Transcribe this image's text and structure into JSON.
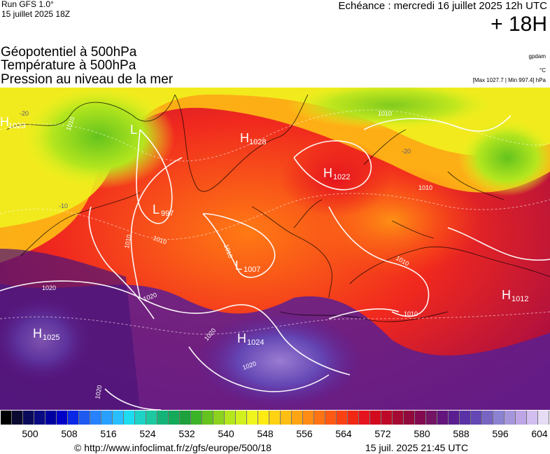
{
  "header": {
    "run": "Run GFS 1.0°",
    "run_date": "15 juillet 2025 18Z",
    "valid": "Echéance : mercredi 16 juillet 2025 12h UTC",
    "lead": "+ 18H"
  },
  "titles": [
    "Géopotentiel à 500hPa",
    "Température à 500hPa",
    "Pression au niveau de la mer"
  ],
  "units": {
    "gpdam": "gpdam",
    "celsius": "°C",
    "pressure_range": "[Max 1027.7 | Min 997.4] hPa"
  },
  "map": {
    "pressure_centers": [
      {
        "kind": "H",
        "value": "1023"
      },
      {
        "kind": "L",
        "value": ""
      },
      {
        "kind": "H",
        "value": "1028"
      },
      {
        "kind": "H",
        "value": "1022"
      },
      {
        "kind": "L",
        "value": "997"
      },
      {
        "kind": "L",
        "value": "1007"
      },
      {
        "kind": "H",
        "value": "1012"
      },
      {
        "kind": "H",
        "value": "1025"
      },
      {
        "kind": "H",
        "value": "1024"
      }
    ],
    "isobar_labels": [
      "1010",
      "1010",
      "1010",
      "1010",
      "1010",
      "1010",
      "1020",
      "1020",
      "1020",
      "1020",
      "1020",
      "1010",
      "1010"
    ],
    "isotherm_labels": [
      "-20",
      "-10",
      "-20"
    ]
  },
  "legend": {
    "colors": [
      "#000000",
      "#0a0a30",
      "#0a0a5a",
      "#0a0a82",
      "#0000a0",
      "#0000c8",
      "#0a28e6",
      "#1e5af0",
      "#2882ff",
      "#28a0ff",
      "#28beff",
      "#1edcf0",
      "#1ed2c8",
      "#1ec8a0",
      "#14b478",
      "#14aa5a",
      "#1ea03c",
      "#3cb428",
      "#64c31e",
      "#8cd21e",
      "#b4e61e",
      "#d2f01e",
      "#f0f51e",
      "#ffeb14",
      "#ffd214",
      "#ffbe14",
      "#ffa514",
      "#ff8c14",
      "#ff7314",
      "#ff5a14",
      "#fa4114",
      "#f02814",
      "#e6141e",
      "#d20a1e",
      "#be0a28",
      "#a50a32",
      "#910a3c",
      "#820a50",
      "#731464",
      "#64147d",
      "#5a1e91",
      "#5a32a5",
      "#6446b4",
      "#7864c3",
      "#8c82d2",
      "#a596dc",
      "#bea5e6",
      "#d2bef0",
      "#e6dcf5"
    ],
    "ticks": [
      "500",
      "508",
      "516",
      "524",
      "532",
      "540",
      "548",
      "556",
      "564",
      "572",
      "580",
      "588",
      "596",
      "604"
    ]
  },
  "footer": {
    "url": "© http://www.infoclimat.fr/z/gfs/europe/500/18",
    "timestamp": "15 juil. 2025 21:45 UTC"
  }
}
